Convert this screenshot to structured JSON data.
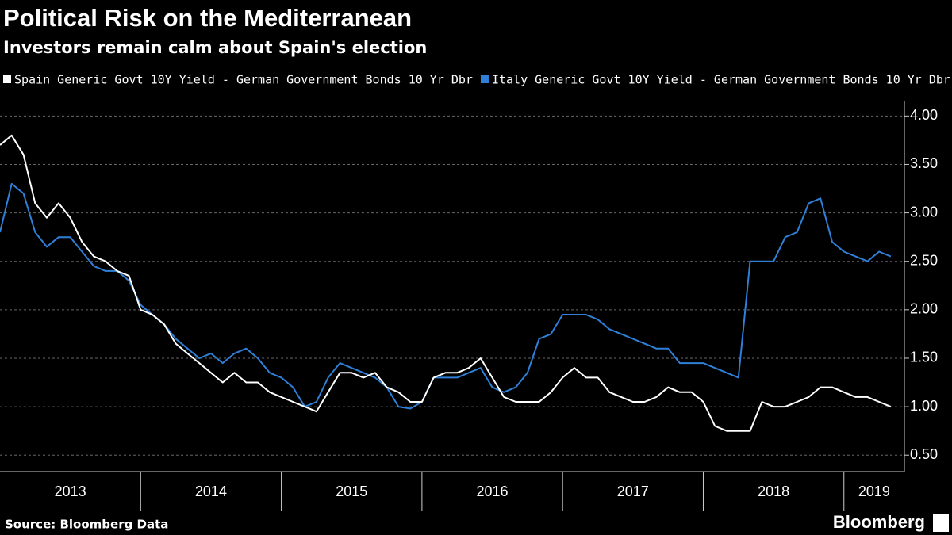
{
  "chart_data": {
    "type": "line",
    "title": "Political Risk on the Mediterranean",
    "subtitle": "Investors remain calm about Spain's election",
    "source": "Source: Bloomberg Data",
    "brand": "Bloomberg",
    "x": [
      2013.0,
      2013.083,
      2013.167,
      2013.25,
      2013.333,
      2013.417,
      2013.5,
      2013.583,
      2013.667,
      2013.75,
      2013.833,
      2013.917,
      2014.0,
      2014.083,
      2014.167,
      2014.25,
      2014.333,
      2014.417,
      2014.5,
      2014.583,
      2014.667,
      2014.75,
      2014.833,
      2014.917,
      2015.0,
      2015.083,
      2015.167,
      2015.25,
      2015.333,
      2015.417,
      2015.5,
      2015.583,
      2015.667,
      2015.75,
      2015.833,
      2015.917,
      2016.0,
      2016.083,
      2016.167,
      2016.25,
      2016.333,
      2016.417,
      2016.5,
      2016.583,
      2016.667,
      2016.75,
      2016.833,
      2016.917,
      2017.0,
      2017.083,
      2017.167,
      2017.25,
      2017.333,
      2017.417,
      2017.5,
      2017.583,
      2017.667,
      2017.75,
      2017.833,
      2017.917,
      2018.0,
      2018.083,
      2018.167,
      2018.25,
      2018.333,
      2018.417,
      2018.5,
      2018.583,
      2018.667,
      2018.75,
      2018.833,
      2018.917,
      2019.0,
      2019.083,
      2019.167,
      2019.25,
      2019.333
    ],
    "series": [
      {
        "name": "Spain Generic Govt 10Y Yield - German Government Bonds 10 Yr Dbr",
        "color": "#ffffff",
        "values": [
          3.7,
          3.8,
          3.6,
          3.1,
          2.95,
          3.1,
          2.95,
          2.7,
          2.55,
          2.5,
          2.4,
          2.35,
          2.0,
          1.95,
          1.85,
          1.65,
          1.55,
          1.45,
          1.35,
          1.25,
          1.35,
          1.25,
          1.25,
          1.15,
          1.1,
          1.05,
          1.0,
          0.95,
          1.15,
          1.35,
          1.35,
          1.3,
          1.35,
          1.2,
          1.15,
          1.05,
          1.05,
          1.3,
          1.35,
          1.35,
          1.4,
          1.5,
          1.3,
          1.1,
          1.05,
          1.05,
          1.05,
          1.15,
          1.3,
          1.4,
          1.3,
          1.3,
          1.15,
          1.1,
          1.05,
          1.05,
          1.1,
          1.2,
          1.15,
          1.15,
          1.05,
          0.8,
          0.75,
          0.75,
          0.75,
          1.05,
          1.0,
          1.0,
          1.05,
          1.1,
          1.2,
          1.2,
          1.15,
          1.1,
          1.1,
          1.05,
          1.0
        ]
      },
      {
        "name": "Italy Generic Govt 10Y Yield - German Government Bonds 10 Yr Dbr",
        "color": "#2f80d8",
        "values": [
          2.8,
          3.3,
          3.2,
          2.8,
          2.65,
          2.75,
          2.75,
          2.6,
          2.45,
          2.4,
          2.4,
          2.3,
          2.05,
          1.95,
          1.85,
          1.7,
          1.6,
          1.5,
          1.55,
          1.45,
          1.55,
          1.6,
          1.5,
          1.35,
          1.3,
          1.2,
          1.0,
          1.05,
          1.3,
          1.45,
          1.4,
          1.35,
          1.3,
          1.2,
          1.0,
          0.98,
          1.05,
          1.3,
          1.3,
          1.3,
          1.35,
          1.4,
          1.2,
          1.15,
          1.2,
          1.35,
          1.7,
          1.75,
          1.95,
          1.95,
          1.95,
          1.9,
          1.8,
          1.75,
          1.7,
          1.65,
          1.6,
          1.6,
          1.45,
          1.45,
          1.45,
          1.4,
          1.35,
          1.3,
          2.5,
          2.5,
          2.5,
          2.75,
          2.8,
          3.1,
          3.15,
          2.7,
          2.6,
          2.55,
          2.5,
          2.6,
          2.55
        ]
      }
    ],
    "xlim": [
      2013.0,
      2019.43
    ],
    "xticks": [
      2014,
      2015,
      2016,
      2017,
      2018,
      2019
    ],
    "x_period_labels": [
      "2013",
      "2014",
      "2015",
      "2016",
      "2017",
      "2018",
      "2019"
    ],
    "ylim": [
      0.33,
      4.15
    ],
    "yticks": [
      {
        "value": 0.5,
        "label": "0.50"
      },
      {
        "value": 1.0,
        "label": "1.00"
      },
      {
        "value": 1.5,
        "label": "1.50"
      },
      {
        "value": 2.0,
        "label": "2.00"
      },
      {
        "value": 2.5,
        "label": "2.50"
      },
      {
        "value": 3.0,
        "label": "3.00"
      },
      {
        "value": 3.5,
        "label": "3.50"
      },
      {
        "value": 4.0,
        "label": "4.00"
      }
    ],
    "grid": true
  }
}
